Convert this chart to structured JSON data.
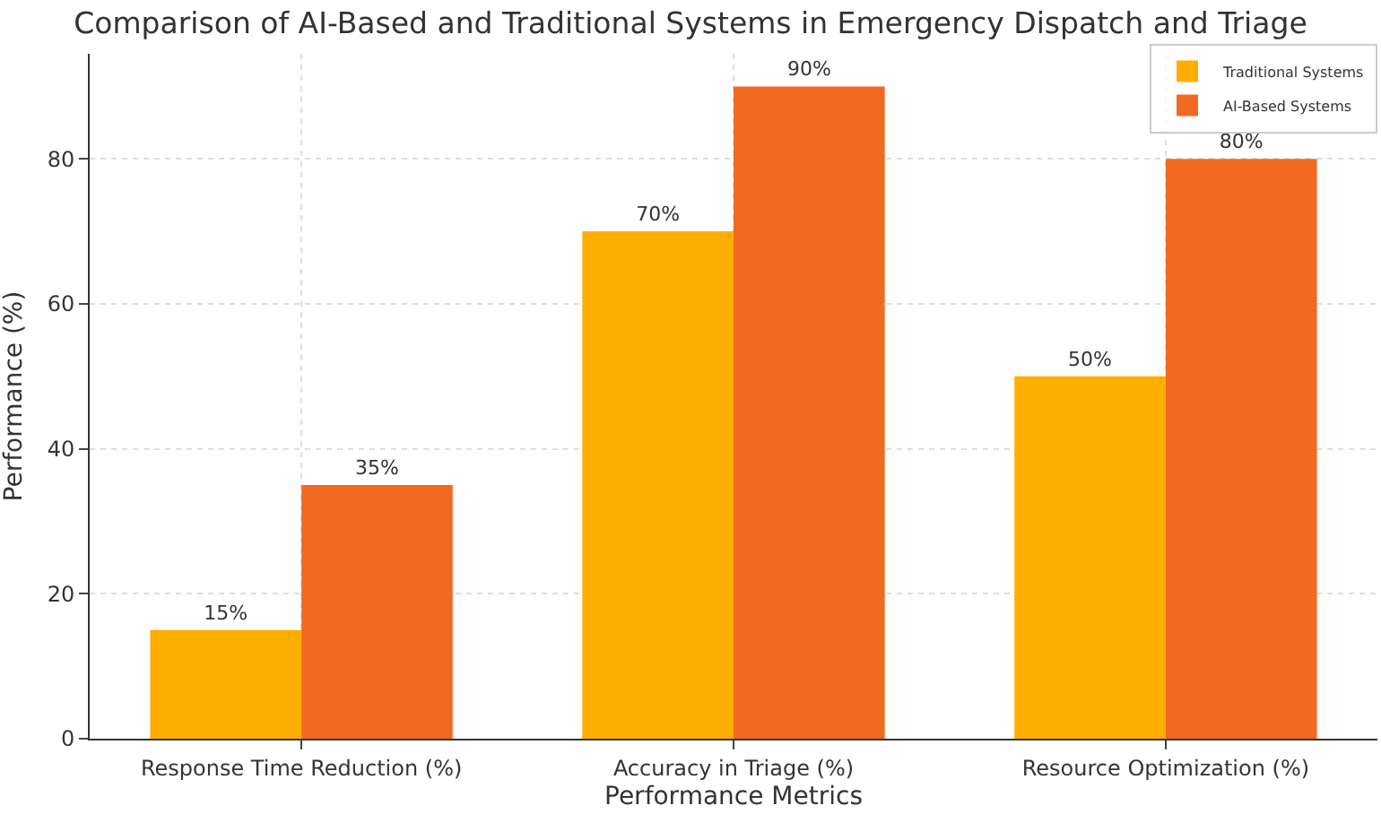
{
  "chart_data": {
    "type": "bar",
    "title": "Comparison of AI-Based and Traditional Systems in Emergency Dispatch and Triage",
    "xlabel": "Performance Metrics",
    "ylabel": "Performance (%)",
    "categories": [
      "Response Time Reduction (%)",
      "Accuracy in Triage (%)",
      "Resource Optimization (%)"
    ],
    "series": [
      {
        "name": "Traditional Systems",
        "color": "#ffad00",
        "values": [
          15,
          70,
          50
        ],
        "value_labels": [
          "15%",
          "70%",
          "50%"
        ]
      },
      {
        "name": "AI-Based Systems",
        "color": "#f26a22",
        "values": [
          35,
          90,
          80
        ],
        "value_labels": [
          "35%",
          "90%",
          "80%"
        ]
      }
    ],
    "ylim": [
      0,
      94.5
    ],
    "yticks": [
      0,
      20,
      40,
      60,
      80
    ],
    "grid": true,
    "legend": "top right"
  }
}
